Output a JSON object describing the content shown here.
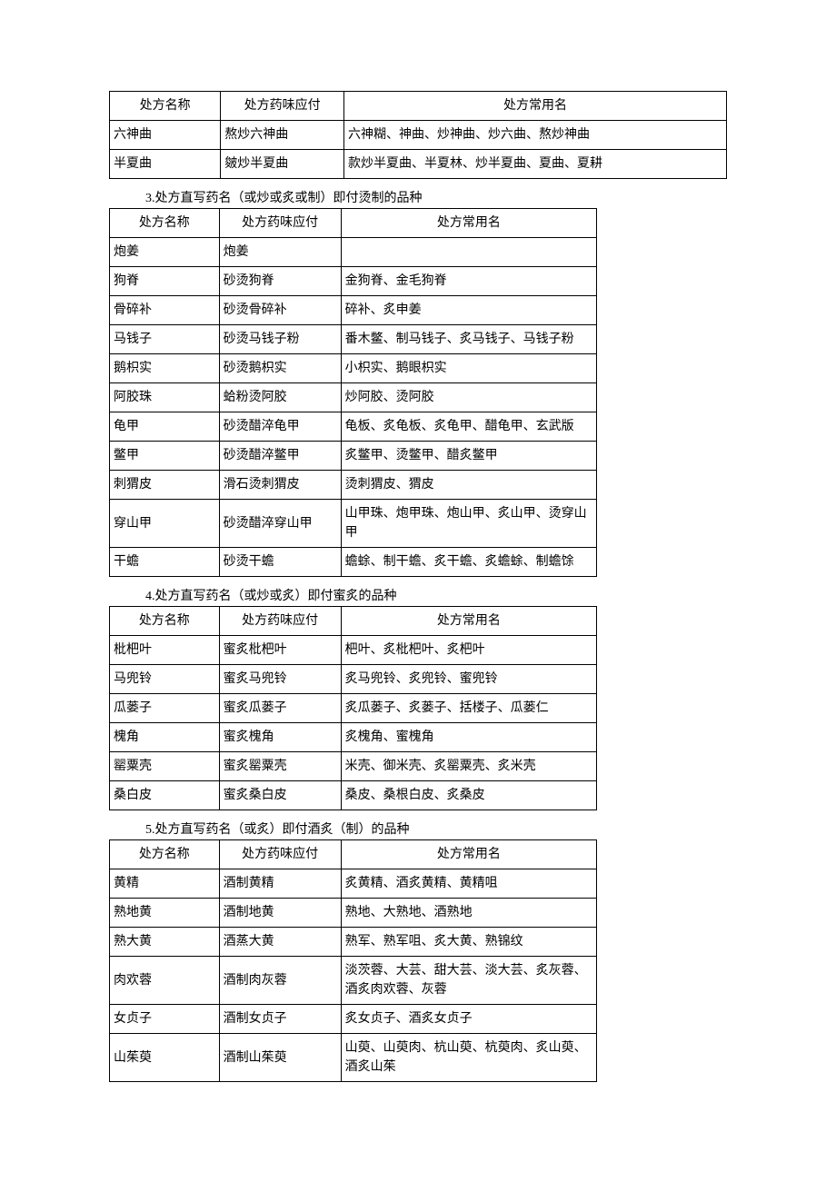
{
  "tables": [
    {
      "title": null,
      "headers": [
        "处方名称",
        "处方药味应付",
        "处方常用名"
      ],
      "widthClass": "full",
      "rows": [
        [
          "六神曲",
          "熬炒六神曲",
          "六神糊、神曲、炒神曲、炒六曲、熬炒神曲"
        ],
        [
          "半夏曲",
          "皴炒半夏曲",
          "款炒半夏曲、半夏林、炒半夏曲、夏曲、夏耕"
        ]
      ]
    },
    {
      "title": "3.处方直写药名（或炒或炙或制）即付烫制的品种",
      "headers": [
        "处方名称",
        "处方药味应付",
        "处方常用名"
      ],
      "widthClass": "narrow",
      "rows": [
        [
          "炮姜",
          "炮姜",
          ""
        ],
        [
          "狗脊",
          "砂烫狗脊",
          "金狗脊、金毛狗脊"
        ],
        [
          "骨碎补",
          "砂烫骨碎补",
          "碎补、炙申姜"
        ],
        [
          "马钱子",
          "砂烫马钱子粉",
          "番木鳖、制马钱子、炙马钱子、马钱子粉"
        ],
        [
          "鹅枳实",
          "砂烫鹅枳实",
          "小枳实、鹅眼枳实"
        ],
        [
          "阿胶珠",
          "蛤粉烫阿胶",
          "炒阿胶、烫阿胶"
        ],
        [
          "龟甲",
          "砂烫醋淬龟甲",
          "龟板、炙龟板、炙龟甲、醋龟甲、玄武版"
        ],
        [
          "鳖甲",
          "砂烫醋淬鳖甲",
          "炙鳖甲、烫鳖甲、醋炙鳖甲"
        ],
        [
          "刺猬皮",
          "滑石烫刺猬皮",
          "烫刺猬皮、猬皮"
        ],
        [
          "穿山甲",
          "砂烫醋淬穿山甲",
          "山甲珠、炮甲珠、炮山甲、炙山甲、烫穿山甲"
        ],
        [
          "干蟾",
          "砂烫干蟾",
          "蟾蜍、制干蟾、炙干蟾、炙蟾蜍、制蟾馀"
        ]
      ]
    },
    {
      "title": "4.处方直写药名（或炒或炙）即付蜜炙的品种",
      "headers": [
        "处方名称",
        "处方药味应付",
        "处方常用名"
      ],
      "widthClass": "narrow",
      "rows": [
        [
          "枇杷叶",
          "蜜炙枇杷叶",
          "杷叶、炙枇杷叶、炙杷叶"
        ],
        [
          "马兜铃",
          "蜜炙马兜铃",
          "炙马兜铃、炙兜铃、蜜兜铃"
        ],
        [
          "瓜蒌子",
          "蜜炙瓜蒌子",
          "炙瓜蒌子、炙蒌子、括楼子、瓜蒌仁"
        ],
        [
          "槐角",
          "蜜炙槐角",
          "炙槐角、蜜槐角"
        ],
        [
          "罂粟壳",
          "蜜炙罂粟壳",
          "米壳、御米壳、炙罂粟壳、炙米壳"
        ],
        [
          "桑白皮",
          "蜜炙桑白皮",
          "桑皮、桑根白皮、炙桑皮"
        ]
      ]
    },
    {
      "title": "5.处方直写药名（或炙）即付酒炙（制）的品种",
      "headers": [
        "处方名称",
        "处方药味应付",
        "处方常用名"
      ],
      "widthClass": "narrow",
      "rows": [
        [
          "黄精",
          "酒制黄精",
          "炙黄精、酒炙黄精、黄精咀"
        ],
        [
          "熟地黄",
          "酒制地黄",
          "熟地、大熟地、酒熟地"
        ],
        [
          "熟大黄",
          "酒蒸大黄",
          "熟军、熟军咀、炙大黄、熟锦纹"
        ],
        [
          "肉欢蓉",
          "酒制肉灰蓉",
          "淡茨蓉、大芸、甜大芸、淡大芸、炙灰蓉、酒炙肉欢蓉、灰蓉"
        ],
        [
          "女贞子",
          "酒制女贞子",
          "炙女贞子、酒炙女贞子"
        ],
        [
          "山茱萸",
          "酒制山茱萸",
          "山萸、山萸肉、杭山萸、杭萸肉、炙山萸、酒炙山茱"
        ]
      ]
    }
  ]
}
